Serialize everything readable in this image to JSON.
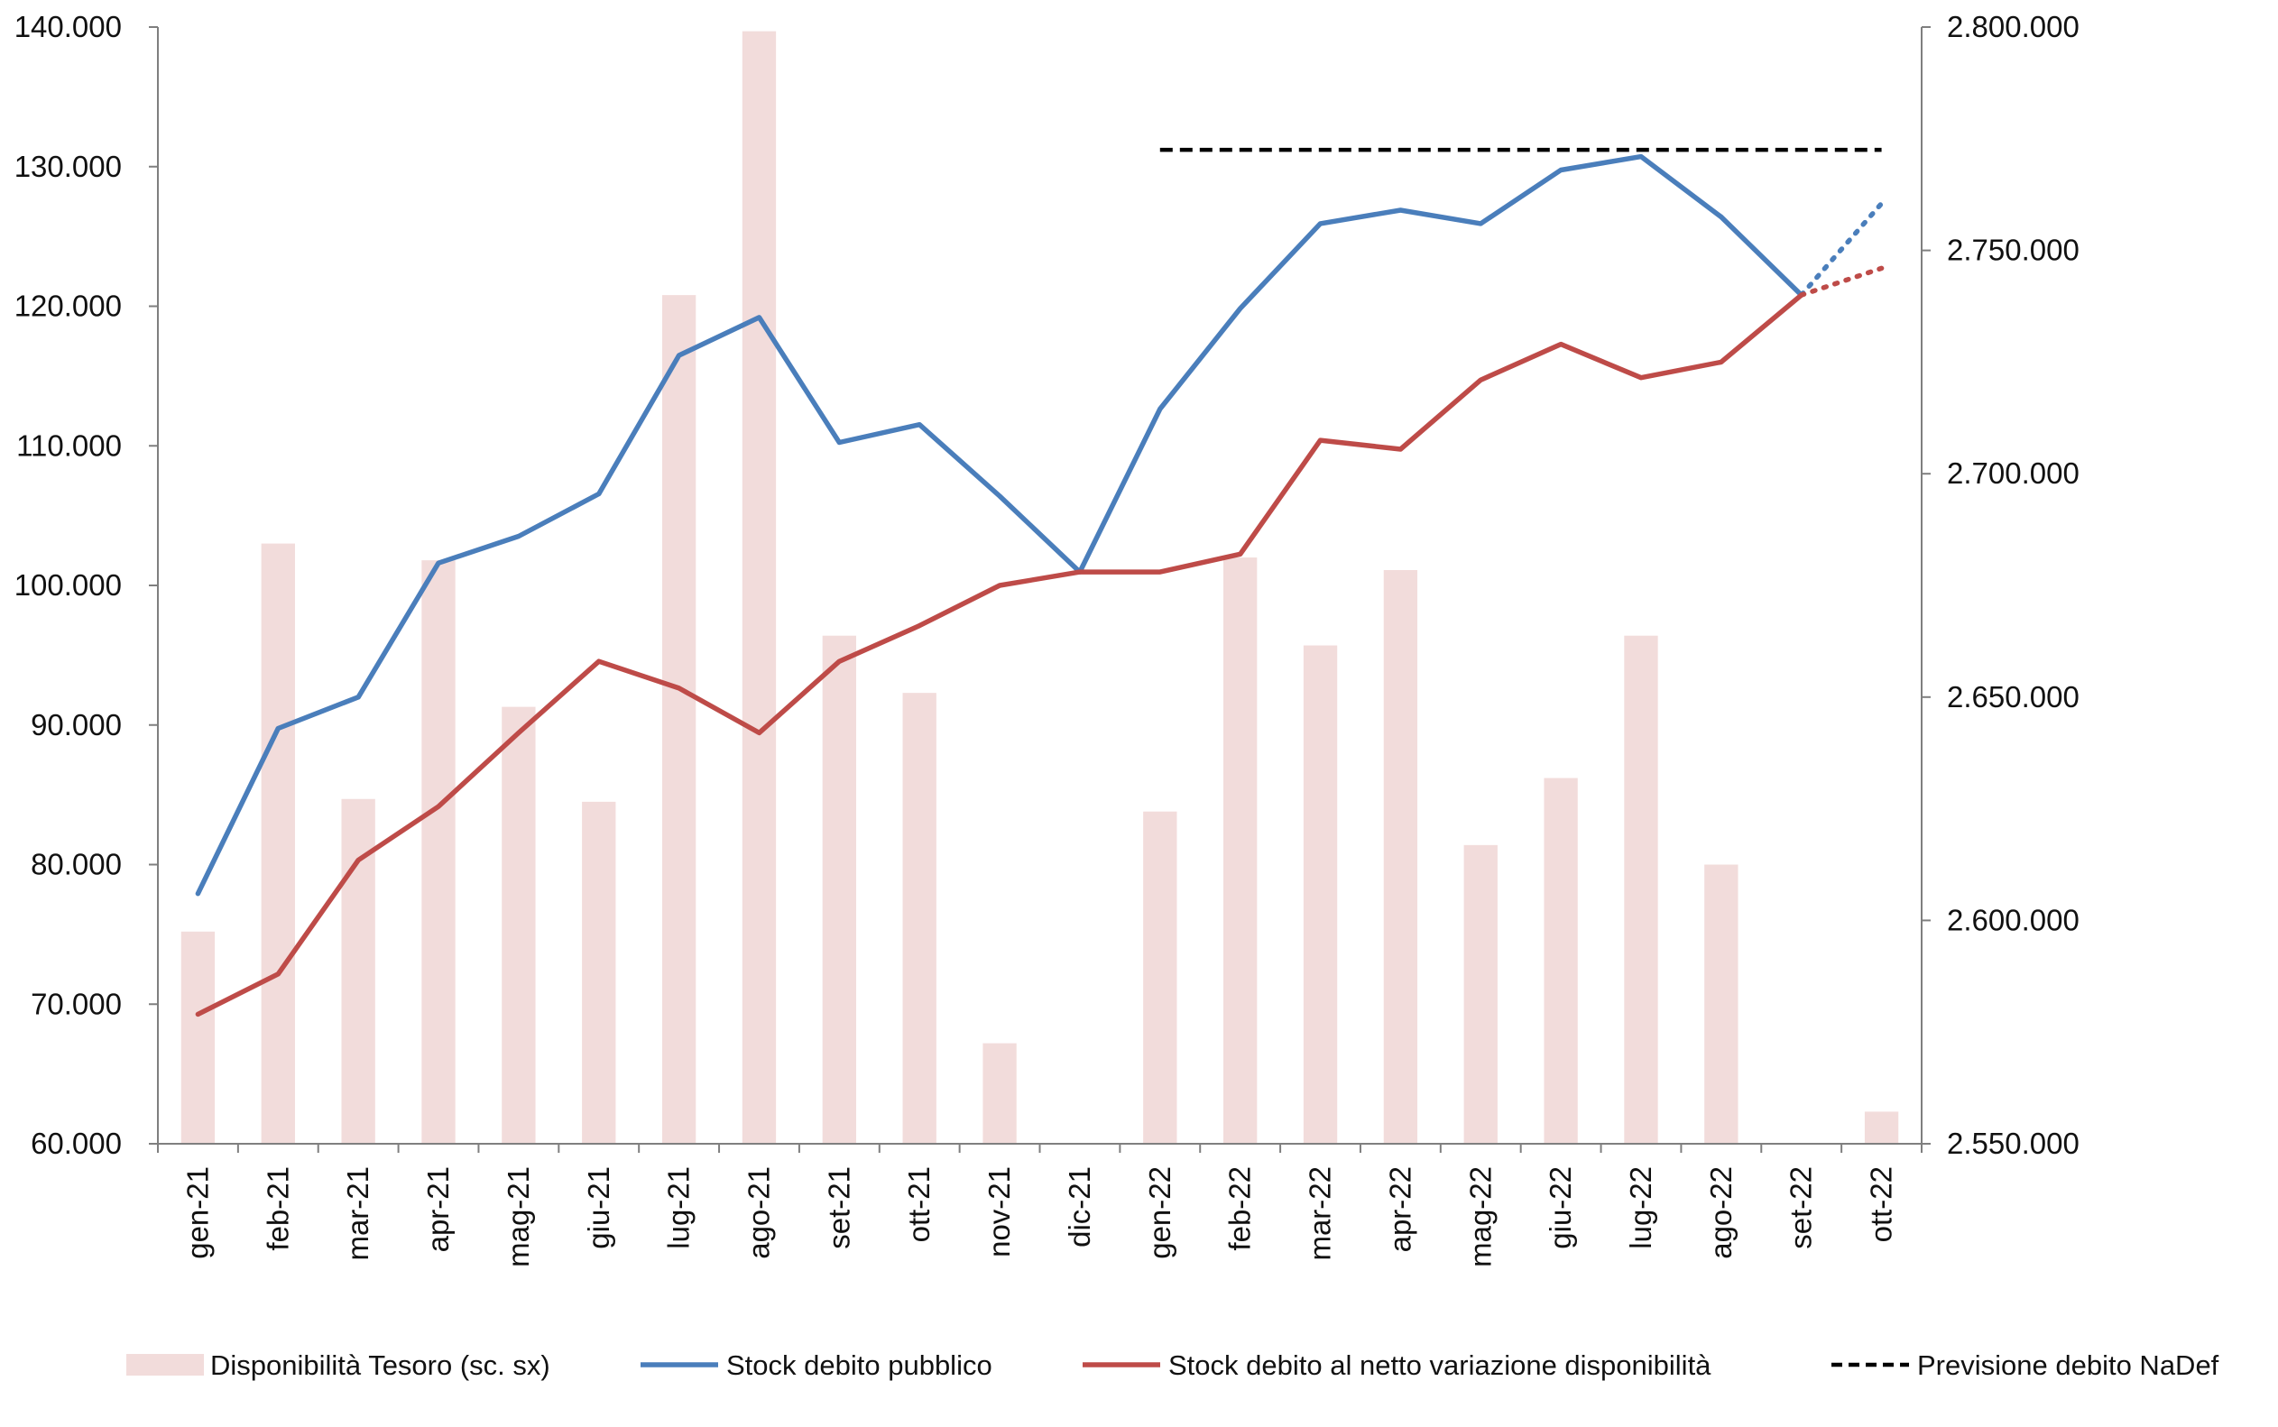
{
  "chart_data": {
    "type": "bar+line",
    "categories": [
      "gen-21",
      "feb-21",
      "mar-21",
      "apr-21",
      "mag-21",
      "giu-21",
      "lug-21",
      "ago-21",
      "set-21",
      "ott-21",
      "nov-21",
      "dic-21",
      "gen-22",
      "feb-22",
      "mar-22",
      "apr-22",
      "mag-22",
      "giu-22",
      "lug-22",
      "ago-22",
      "set-22",
      "ott-22"
    ],
    "y_left": {
      "ylim": [
        60000,
        140000
      ],
      "ticks": [
        60000,
        70000,
        80000,
        90000,
        100000,
        110000,
        120000,
        130000,
        140000
      ],
      "tick_labels": [
        "60.000",
        "70.000",
        "80.000",
        "90.000",
        "100.000",
        "110.000",
        "120.000",
        "130.000",
        "140.000"
      ]
    },
    "y_right": {
      "ylim": [
        2550000,
        2800000
      ],
      "ticks": [
        2550000,
        2600000,
        2650000,
        2700000,
        2750000,
        2800000
      ],
      "tick_labels": [
        "2.550.000",
        "2.600.000",
        "2.650.000",
        "2.700.000",
        "2.750.000",
        "2.800.000"
      ]
    },
    "series": [
      {
        "name": "Disponibilità Tesoro (sc. sx)",
        "type": "bar",
        "axis": "left",
        "color": "#f2dcdb",
        "values": [
          75200,
          103000,
          84700,
          101800,
          91300,
          84500,
          120800,
          139700,
          96400,
          92300,
          67200,
          60000,
          83800,
          102000,
          95700,
          101100,
          81400,
          86200,
          96400,
          80000,
          60000,
          62300
        ]
      },
      {
        "name": "Stock debito pubblico",
        "type": "line",
        "axis": "right",
        "color": "#4a7ebb",
        "values": [
          2606000,
          2643000,
          2650000,
          2680000,
          2686000,
          2695500,
          2726500,
          2735000,
          2707000,
          2711000,
          2695000,
          2678000,
          2714500,
          2737000,
          2756000,
          2759000,
          2756000,
          2768000,
          2771000,
          2757500,
          2740000,
          null
        ],
        "projection": {
          "from": "set-22",
          "to": "ott-22",
          "values": [
            2740000,
            2760500
          ],
          "style": "dotted"
        }
      },
      {
        "name": "Stock debito al netto variazione disponibilità",
        "type": "line",
        "axis": "right",
        "color": "#be4b48",
        "values": [
          2579000,
          2588000,
          2613500,
          2625500,
          2642000,
          2658000,
          2652000,
          2642000,
          2658000,
          2666000,
          2675000,
          2678000,
          2678000,
          2682000,
          2707500,
          2705500,
          2721000,
          2729000,
          2721500,
          2725000,
          2740000,
          null
        ],
        "projection": {
          "from": "set-22",
          "to": "ott-22",
          "values": [
            2740000,
            2746000
          ],
          "style": "dotted"
        }
      },
      {
        "name": "Previsione debito NaDef",
        "type": "line",
        "axis": "right",
        "color": "#000000",
        "style": "dashed",
        "from": "gen-22",
        "to": "ott-22",
        "value": 2772500
      }
    ],
    "legend": {
      "position": "bottom",
      "entries": [
        "Disponibilità Tesoro (sc. sx)",
        "Stock debito pubblico",
        "Stock debito al netto variazione disponibilità",
        "Previsione debito NaDef"
      ]
    },
    "grid": false,
    "title": "",
    "xlabel": "",
    "ylabel": ""
  }
}
